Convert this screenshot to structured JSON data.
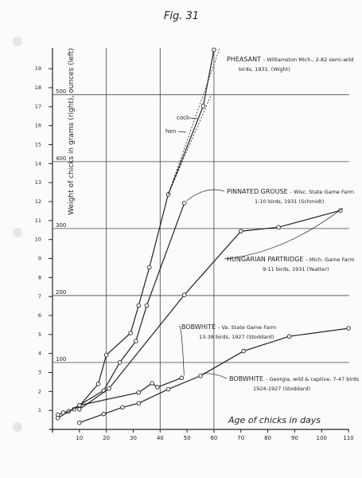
{
  "chart_data": {
    "type": "line",
    "title": "Fig. 31",
    "y_label": "Weight of chicks in grams (right), ounces (left)",
    "x_label": "Age of chicks in days",
    "xlim": [
      0,
      112
    ],
    "xticks": [
      10,
      20,
      30,
      40,
      50,
      60,
      70,
      80,
      90,
      100,
      110
    ],
    "ylim": [
      0,
      570
    ],
    "yticks": [
      100,
      200,
      300,
      400,
      500
    ],
    "y2lim": [
      0,
      20.1
    ],
    "y2ticks": [
      1,
      2,
      3,
      4,
      5,
      6,
      7,
      8,
      9,
      10,
      11,
      12,
      13,
      14,
      15,
      16,
      17,
      18,
      19
    ],
    "x_grid": [
      20,
      40,
      60
    ],
    "grid": true,
    "color": "#222222",
    "series": [
      {
        "name": "PHEASANT",
        "note": [
          "- Williamston Mich., 2-82 semi-wild",
          "birds, 1931. (Wight)"
        ],
        "x": [
          2,
          4,
          6,
          8,
          10,
          17,
          20,
          29,
          32,
          36,
          43,
          56,
          60
        ],
        "values": [
          22,
          25,
          27,
          30,
          35,
          68,
          111,
          144,
          185,
          242,
          351,
          483,
          567
        ]
      },
      {
        "name": "cock",
        "dashed": true,
        "x": [
          43,
          62
        ],
        "values": [
          351,
          568
        ]
      },
      {
        "name": "hen",
        "dashed": true,
        "x": [
          43,
          59
        ],
        "values": [
          351,
          500
        ]
      },
      {
        "name": "PINNATED GROUSE",
        "note": [
          "- Wisc. State Game Farm",
          "1-10 birds, 1931 (Schmidt)"
        ],
        "x": [
          2,
          19,
          25,
          31,
          35,
          49
        ],
        "values": [
          17,
          58,
          100,
          132,
          185,
          338
        ]
      },
      {
        "name": "HUNGARIAN PARTRIDGE",
        "note": [
          "- Mich. Game Farm",
          "9-11 birds, 1931 (Yeatter)"
        ],
        "x": [
          10,
          21,
          49,
          70,
          84,
          107
        ],
        "values": [
          30,
          61,
          201,
          296,
          302,
          327
        ]
      },
      {
        "name": "BOBWHITE",
        "note": [
          "- Va. State Game Farm",
          "13-38 birds, 1927 (Stoddard)"
        ],
        "x": [
          10,
          32,
          37,
          39,
          48
        ],
        "values": [
          36,
          55,
          69,
          63,
          77
        ]
      },
      {
        "name": "BOBWHITE",
        "note": [
          "- Georgia, wild & captive, 7-47 birds",
          "1924-1927 (Stoddard)"
        ],
        "x": [
          10,
          19,
          26,
          32,
          43,
          55,
          71,
          88,
          110
        ],
        "values": [
          10,
          23,
          33,
          39,
          60,
          80,
          117,
          139,
          151
        ]
      }
    ]
  }
}
